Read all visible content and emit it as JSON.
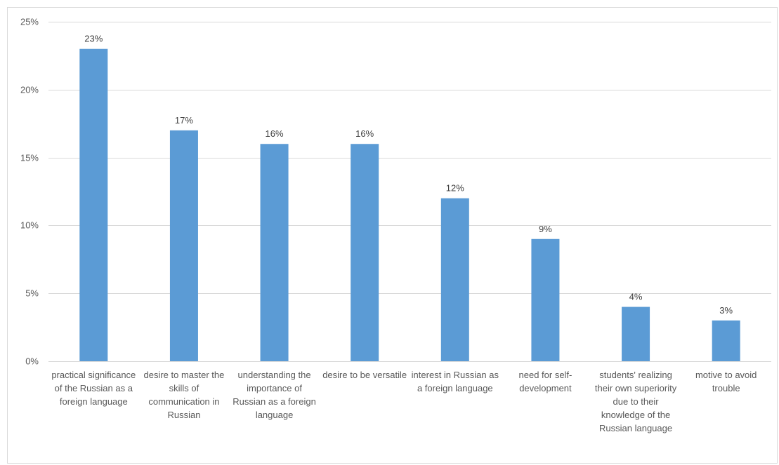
{
  "chart_data": {
    "type": "bar",
    "categories": [
      "practical significance of the Russian as a foreign language",
      "desire to master the skills of communication in Russian",
      "understanding the importance of Russian as a foreign language",
      "desire to be versatile",
      "interest in Russian as a foreign language",
      "need for self-development",
      "students' realizing their own superiority due to their knowledge of the Russian language",
      "motive to avoid trouble"
    ],
    "values": [
      23,
      17,
      16,
      16,
      12,
      9,
      4,
      3
    ],
    "data_labels": [
      "23%",
      "17%",
      "16%",
      "16%",
      "12%",
      "9%",
      "4%",
      "3%"
    ],
    "y_ticks": [
      "0%",
      "5%",
      "10%",
      "15%",
      "20%",
      "25%"
    ],
    "ylim": [
      0,
      25
    ],
    "unit": "%",
    "title": "",
    "xlabel": "",
    "ylabel": "",
    "grid": true,
    "legend": "none",
    "bar_color": "#5b9bd5",
    "grid_color": "#d9d9d9"
  }
}
